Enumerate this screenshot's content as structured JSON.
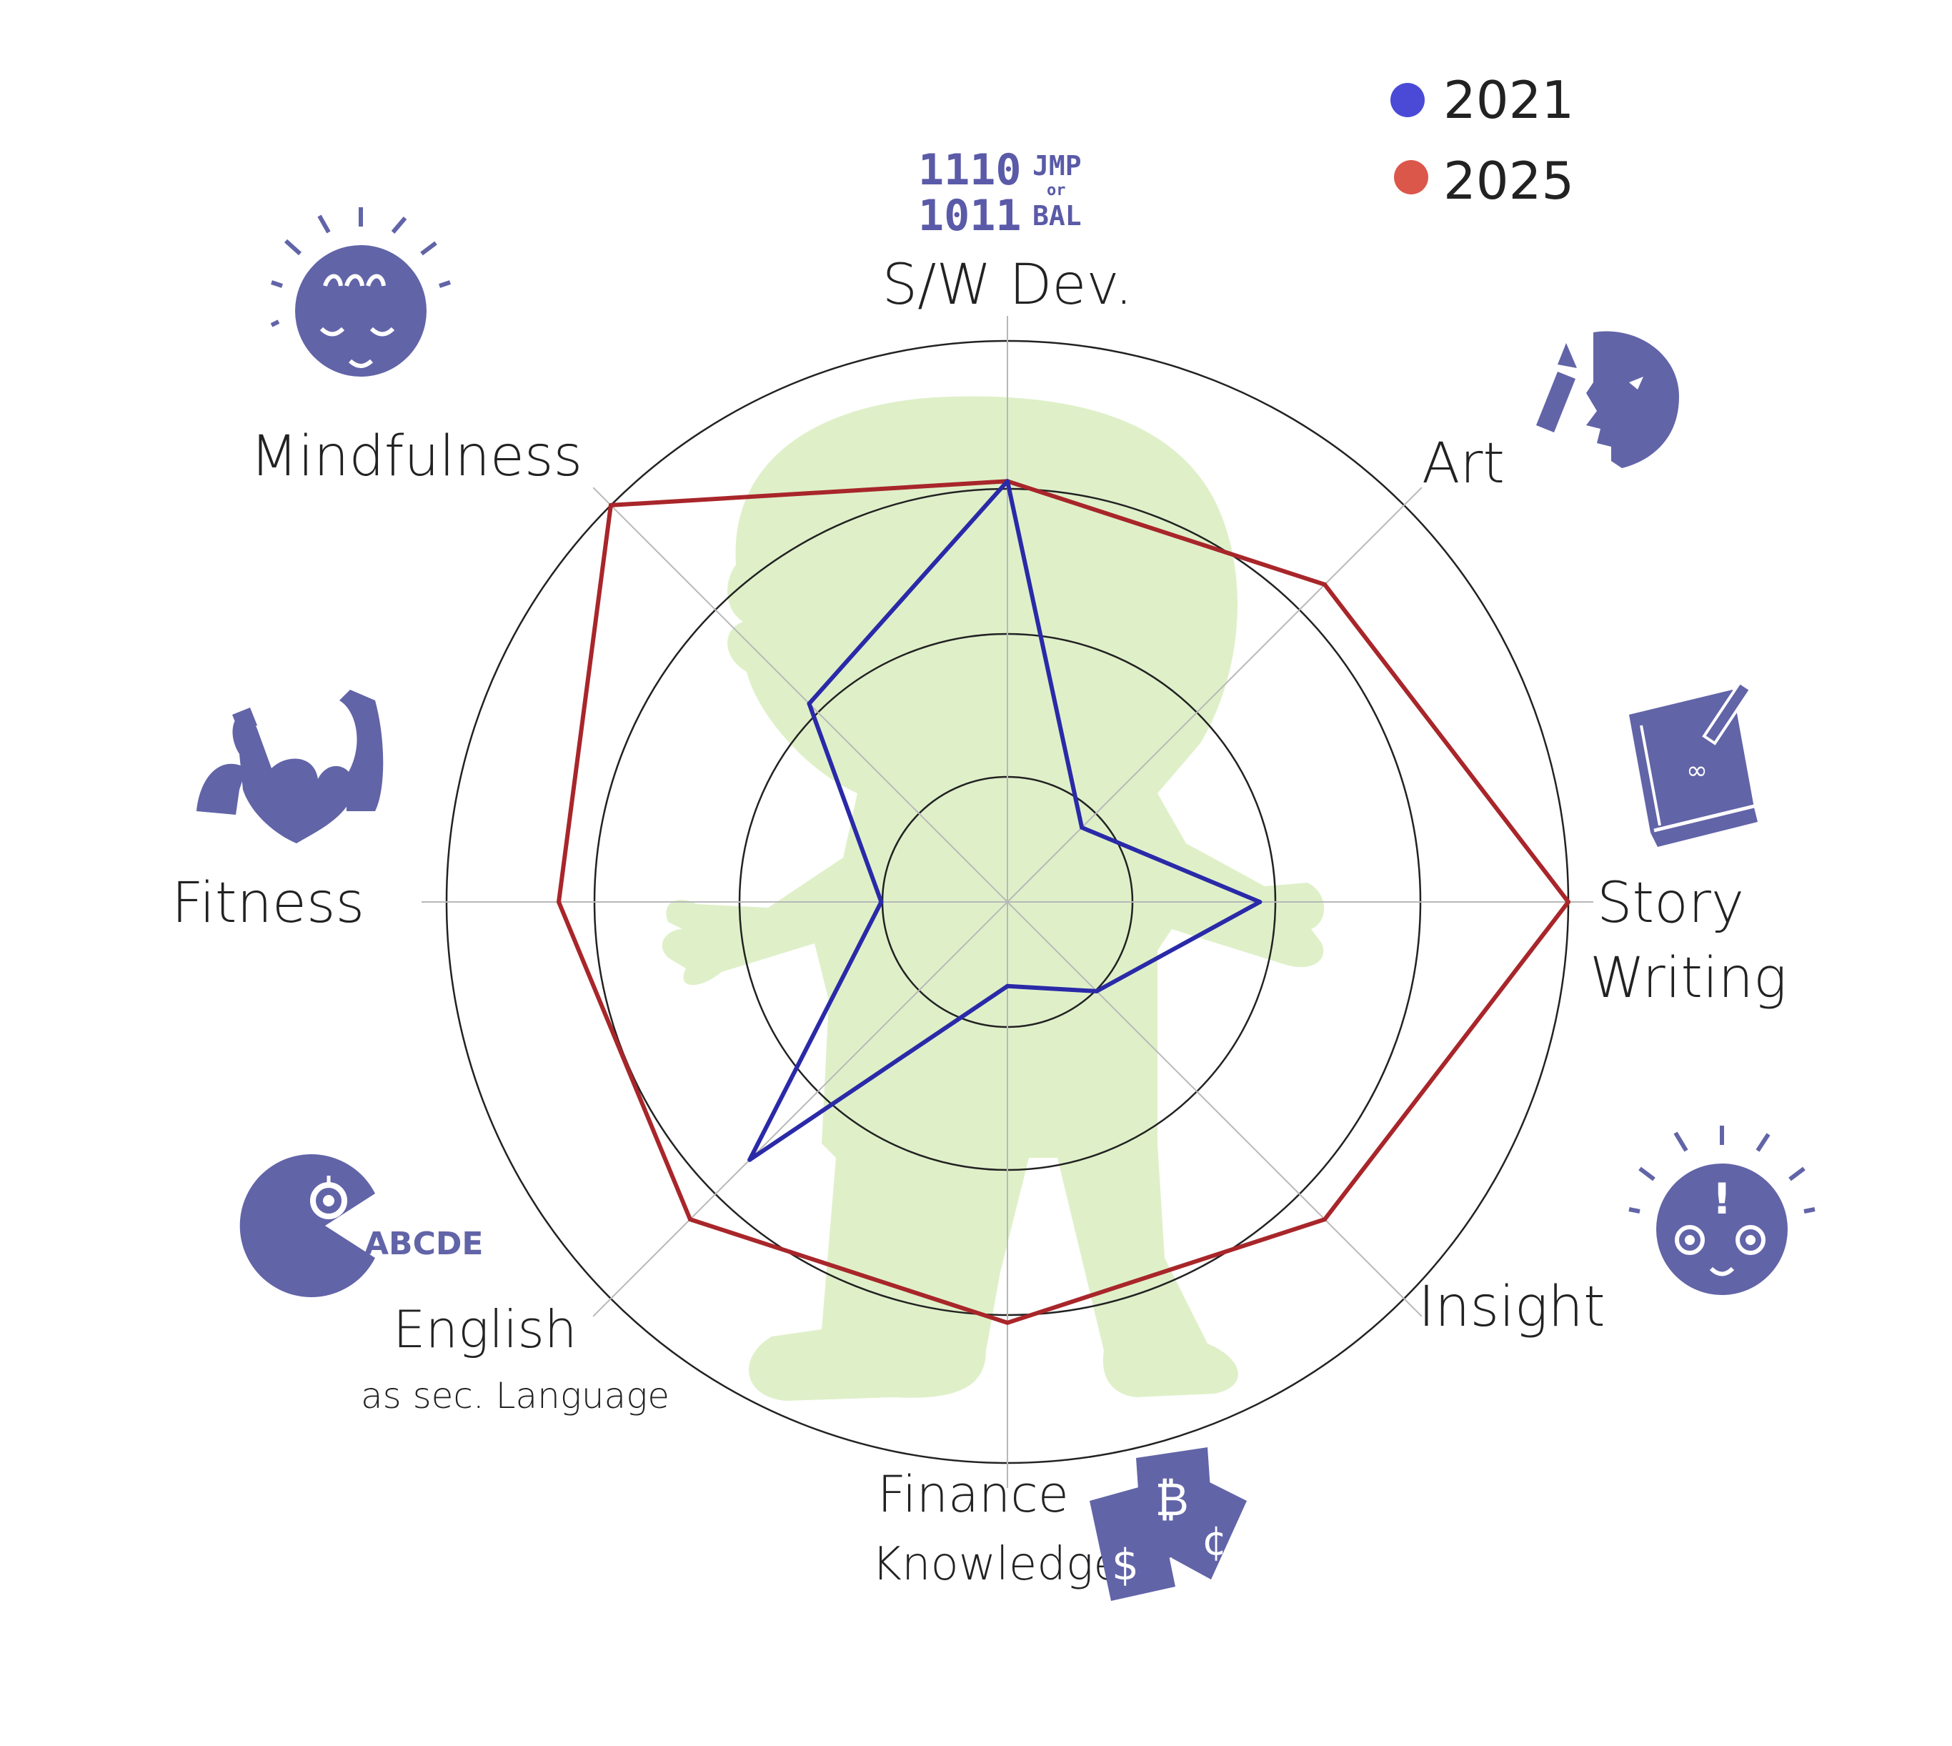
{
  "chart_data": {
    "type": "radar",
    "axes": [
      "S/W Dev.",
      "Art",
      "Story Writing",
      "Insight",
      "Finance Knowledge",
      "English as sec. Language",
      "Fitness",
      "Mindfulness"
    ],
    "rings": 4,
    "range": [
      0,
      4
    ],
    "series": [
      {
        "name": "2021",
        "color": "#2a2aa8",
        "values": [
          3,
          0.75,
          1.8,
          0.9,
          0.6,
          2.6,
          0.9,
          2.0
        ]
      },
      {
        "name": "2025",
        "color": "#a8262a",
        "values": [
          3,
          3.2,
          4.0,
          3.2,
          3.0,
          3.2,
          3.2,
          4.0
        ]
      }
    ],
    "grid": true,
    "legend_position": "top-right"
  },
  "header": {
    "code_line1": "1110",
    "code_line2": "1011",
    "jmp_label": "JMP",
    "of_label": "or",
    "bal_label": "BAL"
  },
  "labels": {
    "sw_dev": "S/W Dev.",
    "art": "Art",
    "story_line1": "Story",
    "story_line2": "Writing",
    "insight": "Insight",
    "finance_line1": "Finance",
    "finance_line2": "Knowledge",
    "english_line1": "English",
    "english_line2": "as sec. Language",
    "fitness": "Fitness",
    "mindfulness": "Mindfulness"
  },
  "legend": {
    "item1": "2021",
    "item2": "2025"
  },
  "icons": {
    "mindfulness": "meditating-face-icon",
    "art": "painter-profile-icon",
    "story": "book-with-pen-icon",
    "insight": "lightbulb-face-icon",
    "finance": "money-bills-icon",
    "english": "alphabet-eater-icon",
    "fitness": "flexing-arms-heart-icon"
  },
  "colors": {
    "icon": "#6264a8",
    "figure": "#dff0c9",
    "ring": "#222222",
    "spoke": "#b8b8b8"
  }
}
